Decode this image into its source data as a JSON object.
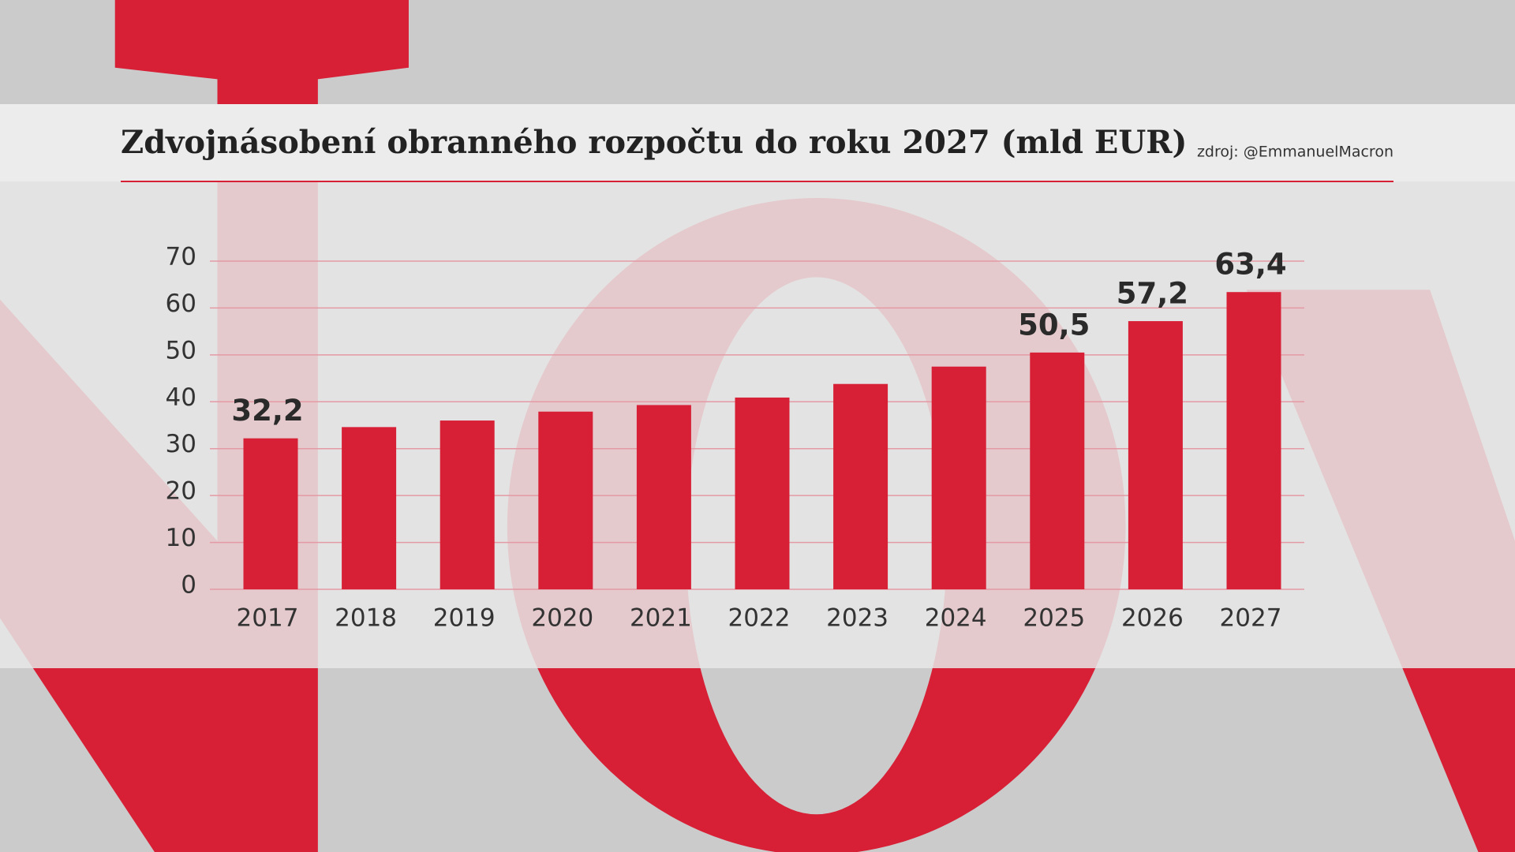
{
  "chart_data": {
    "type": "bar",
    "title": "Zdvojnásobení obranného rozpočtu do roku 2027 (mld EUR)",
    "source": "zdroj: @EmmanuelMacron",
    "categories": [
      "2017",
      "2018",
      "2019",
      "2020",
      "2021",
      "2022",
      "2023",
      "2024",
      "2025",
      "2026",
      "2027"
    ],
    "values": [
      32.2,
      34.6,
      36.0,
      37.9,
      39.3,
      40.9,
      43.8,
      47.5,
      50.5,
      57.2,
      63.4
    ],
    "value_labels": [
      "32,2",
      null,
      null,
      null,
      null,
      null,
      null,
      null,
      "50,5",
      "57,2",
      "63,4"
    ],
    "color": "#d71f36",
    "ylim": [
      0,
      70
    ],
    "yticks": [
      0,
      10,
      20,
      30,
      40,
      50,
      60,
      70
    ],
    "grid": true
  }
}
